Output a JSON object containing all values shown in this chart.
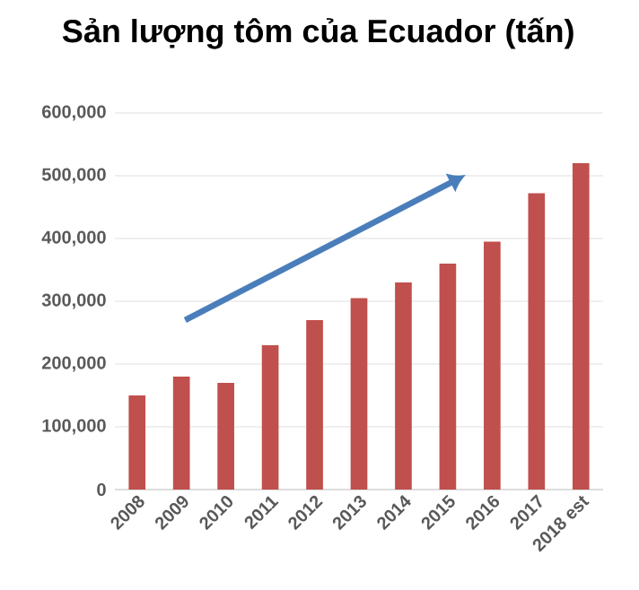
{
  "chart_data": {
    "type": "bar",
    "title": "Sản lượng tôm của Ecuador (tấn)",
    "categories": [
      "2008",
      "2009",
      "2010",
      "2011",
      "2012",
      "2013",
      "2014",
      "2015",
      "2016",
      "2017",
      "2018 est"
    ],
    "values": [
      150000,
      180000,
      170000,
      230000,
      270000,
      305000,
      330000,
      360000,
      395000,
      472000,
      520000
    ],
    "color": "#c0504d",
    "ylim": [
      0,
      600000
    ],
    "yticks": [
      0,
      {
        "value": 100000,
        "label": "100,000"
      },
      {
        "value": 200000,
        "label": "200,000"
      },
      {
        "value": 300000,
        "label": "300,000"
      },
      {
        "value": 400000,
        "label": "400,000"
      },
      {
        "value": 500000,
        "label": "500,000"
      },
      {
        "value": 600000,
        "label": "600,000"
      }
    ],
    "grid": "y"
  }
}
